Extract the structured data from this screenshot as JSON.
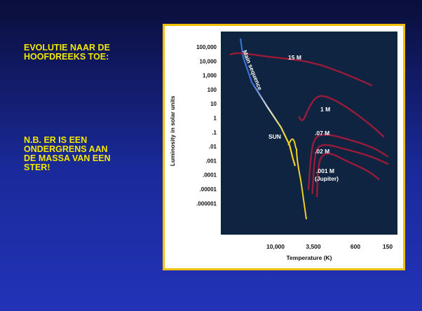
{
  "slide": {
    "heading_lines": [
      "EVOLUTIE NAAR DE",
      "HOOFDREEKS TOE:"
    ],
    "note_lines": [
      "N.B. ER IS EEN",
      "ONDERGRENS AAN",
      "DE MASSA VAN EEN",
      "STER!"
    ],
    "text_color": "#f5e800",
    "frame_color": "#f0c000",
    "plot_background": "#0f2440"
  },
  "chart_data": {
    "type": "line",
    "xlabel": "Temperature (K)",
    "ylabel": "Luminosity in solar units",
    "x_tick_labels": [
      "10,000",
      "3,500",
      "600",
      "150"
    ],
    "y_tick_labels": [
      "100,000",
      "10,000",
      "1,000",
      "100",
      "10",
      "1",
      ".1",
      ".01",
      ".001",
      ".0001",
      ".00001",
      ".000001"
    ],
    "y_scale": "log",
    "x_direction": "decreasing",
    "ylim": [
      3e-07,
      300000
    ],
    "annotations": {
      "main_sequence": "Main sequence",
      "sun": "SUN"
    },
    "series": [
      {
        "label": "15 M",
        "color": "#9a1a3a",
        "points": [
          [
            35000,
            30000
          ],
          [
            28000,
            40000
          ],
          [
            12000,
            20000
          ],
          [
            4000,
            10000
          ],
          [
            1200,
            2000
          ],
          [
            300,
            200
          ]
        ]
      },
      {
        "label": "1 M",
        "color": "#9a1a3a",
        "points": [
          [
            5200,
            1.2
          ],
          [
            4700,
            0.5
          ],
          [
            4000,
            5
          ],
          [
            3000,
            40
          ],
          [
            1800,
            30
          ],
          [
            800,
            5
          ],
          [
            300,
            0.3
          ],
          [
            180,
            0.05
          ]
        ]
      },
      {
        "label": ".07 M",
        "color": "#9a1a3a",
        "points": [
          [
            4000,
            1e-05
          ],
          [
            3800,
            0.001
          ],
          [
            3500,
            0.03
          ],
          [
            2500,
            0.08
          ],
          [
            1200,
            0.05
          ],
          [
            300,
            0.01
          ],
          [
            150,
            0.002
          ]
        ]
      },
      {
        "label": ".02 M",
        "color": "#9a1a3a",
        "points": [
          [
            3600,
            5e-06
          ],
          [
            3400,
            0.0005
          ],
          [
            3100,
            0.008
          ],
          [
            2200,
            0.015
          ],
          [
            1100,
            0.008
          ],
          [
            300,
            0.002
          ],
          [
            150,
            0.0006
          ]
        ]
      },
      {
        "label": ".001 M (Jupiter)",
        "color": "#9a1a3a",
        "points": [
          [
            3000,
            3e-06
          ],
          [
            2900,
            0.0002
          ],
          [
            2600,
            0.002
          ],
          [
            1800,
            0.004
          ],
          [
            900,
            0.001
          ],
          [
            350,
            0.0002
          ],
          [
            220,
            5e-05
          ]
        ]
      }
    ],
    "main_sequence": {
      "color_top": "#3a6fd6",
      "color_mid": "#e0e0e0",
      "color_bottom": "#f0d020"
    },
    "sun_track": {
      "color": "#f0d020"
    }
  }
}
